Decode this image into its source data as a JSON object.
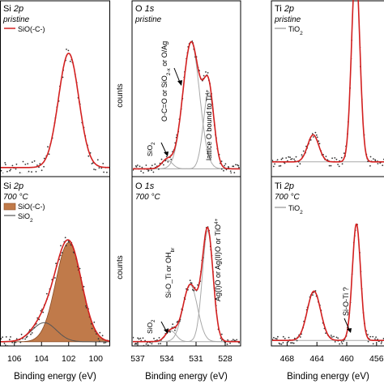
{
  "colors": {
    "fit_red": "#d32020",
    "component_gray": "#a8a8a8",
    "sio_fill": "#c07a4a",
    "sio_fill_edge": "#8a4a22",
    "points": "#333333",
    "frame": "#000000"
  },
  "chart_data": [
    {
      "id": "si2p-pristine",
      "type": "line",
      "title": "Si 2p",
      "condition": "pristine",
      "xlim": [
        107,
        99
      ],
      "xreversed": true,
      "ylim": [
        0,
        1
      ],
      "legend": [
        {
          "label": "SiO(-C-)",
          "kind": "line",
          "color": "#d32020"
        }
      ],
      "components": [
        {
          "name": "SiO(-C-)",
          "center": 102.0,
          "height": 0.82,
          "sigma": 0.75,
          "style": "none"
        }
      ],
      "envelope": {
        "name": "fit",
        "color": "#d32020"
      },
      "noise": 0.05,
      "baseline": 0.03,
      "points_count": 70,
      "seed": 11
    },
    {
      "id": "o1s-pristine",
      "type": "line",
      "title": "O 1s",
      "condition": "pristine",
      "ylabel": "counts",
      "xlim": [
        537.5,
        526.5
      ],
      "xreversed": true,
      "ylim": [
        0,
        1
      ],
      "components": [
        {
          "name": "SiO2",
          "center": 534.0,
          "height": 0.06,
          "sigma": 0.55,
          "style": "line"
        },
        {
          "name": "O-C=O or SiO2-x or O/Ag",
          "center": 531.5,
          "height": 0.86,
          "sigma": 0.85,
          "style": "line"
        },
        {
          "name": "lattice O bound to Ti4+",
          "center": 529.7,
          "height": 0.52,
          "sigma": 0.55,
          "style": "line"
        }
      ],
      "envelope": {
        "name": "fit",
        "color": "#d32020"
      },
      "annotations": [
        {
          "text": "O-C=O or SiO2-x or O/Ag",
          "x": 532.6,
          "y": 0.35
        },
        {
          "text": "lattice O bound to Ti4+",
          "x": 529.1,
          "y": 0.18
        },
        {
          "text": "SiO2",
          "x": 535.2,
          "y": 0.04
        }
      ],
      "noise": 0.03,
      "baseline": 0.02,
      "points_count": 95,
      "seed": 23
    },
    {
      "id": "ti2p-pristine",
      "type": "line",
      "title": "Ti 2p",
      "condition": "pristine",
      "xlim": [
        470,
        455
      ],
      "xreversed": true,
      "ylim": [
        0,
        1
      ],
      "legend": [
        {
          "label": "TiO2",
          "kind": "line",
          "color": "#a8a8a8"
        }
      ],
      "components": [
        {
          "name": "TiO2 2p1/2",
          "center": 464.5,
          "height": 0.22,
          "sigma": 0.75,
          "style": "line"
        },
        {
          "name": "TiO2 2p3/2",
          "center": 458.8,
          "height": 1.6,
          "sigma": 0.55,
          "style": "line"
        }
      ],
      "envelope": {
        "name": "fit",
        "color": "#d32020"
      },
      "noise": 0.04,
      "baseline": 0.08,
      "points_count": 90,
      "seed": 37
    },
    {
      "id": "si2p-700",
      "type": "area",
      "title": "Si 2p",
      "condition": "700 °C",
      "xlim": [
        107,
        99
      ],
      "xreversed": true,
      "ylim": [
        0,
        1
      ],
      "legend": [
        {
          "label": "SiO(-C-)",
          "kind": "patch",
          "color": "#c07a4a"
        },
        {
          "label": "SiO2",
          "kind": "line",
          "color": "#555555"
        }
      ],
      "components": [
        {
          "name": "SiO(-C-)",
          "center": 102.0,
          "height": 0.78,
          "sigma": 0.95,
          "style": "fill"
        },
        {
          "name": "SiO2",
          "center": 103.8,
          "height": 0.15,
          "sigma": 0.9,
          "style": "darkline"
        }
      ],
      "envelope": {
        "name": "fit",
        "color": "#d32020"
      },
      "noise": 0.05,
      "baseline": 0.02,
      "points_count": 80,
      "seed": 5
    },
    {
      "id": "o1s-700",
      "type": "line",
      "title": "O 1s",
      "condition": "700 °C",
      "ylabel": "counts",
      "xlim": [
        537.5,
        526.5
      ],
      "xreversed": true,
      "ylim": [
        0,
        1
      ],
      "components": [
        {
          "name": "SiO2",
          "center": 533.6,
          "height": 0.08,
          "sigma": 0.55,
          "style": "line"
        },
        {
          "name": "Si-O_Ti or OHbr",
          "center": 531.6,
          "height": 0.42,
          "sigma": 0.75,
          "style": "line"
        },
        {
          "name": "Ag(I)O or Ag(II)O or TiO2",
          "center": 529.8,
          "height": 0.82,
          "sigma": 0.55,
          "style": "line"
        }
      ],
      "envelope": {
        "name": "fit",
        "color": "#d32020"
      },
      "annotations": [
        {
          "text": "Si-O_Ti or OHbr",
          "x": 532.7,
          "y": 0.34
        },
        {
          "text": "Ag(I)O or Ag(II)O or TiO2",
          "x": 530.7,
          "y": 0.32
        },
        {
          "text": "SiO2",
          "x": 535.2,
          "y": 0.04
        }
      ],
      "xticks": [
        537,
        534,
        531,
        528
      ],
      "xlabel": "Binding energy (eV)",
      "noise": 0.03,
      "baseline": 0.02,
      "points_count": 95,
      "seed": 41
    },
    {
      "id": "ti2p-700",
      "type": "line",
      "title": "Ti 2p",
      "condition": "700 °C",
      "xlim": [
        470,
        455
      ],
      "xreversed": true,
      "ylim": [
        0,
        1
      ],
      "legend": [
        {
          "label": "TiO2",
          "kind": "line",
          "color": "#a8a8a8"
        }
      ],
      "components": [
        {
          "name": "TiO2 2p1/2",
          "center": 464.4,
          "height": 0.38,
          "sigma": 0.9,
          "style": "line"
        },
        {
          "name": "TiO2 2p3/2",
          "center": 458.7,
          "height": 0.9,
          "sigma": 0.55,
          "style": "line"
        }
      ],
      "envelope": {
        "name": "fit",
        "color": "#d32020"
      },
      "annotations": [
        {
          "text": "Si-O-Ti ?",
          "x": 462.3,
          "y": 0.3
        }
      ],
      "xticks": [
        468,
        464,
        460,
        456
      ],
      "xlabel": "Binding energy (eV)",
      "noise": 0.03,
      "baseline": 0.03,
      "points_count": 90,
      "seed": 59
    }
  ]
}
